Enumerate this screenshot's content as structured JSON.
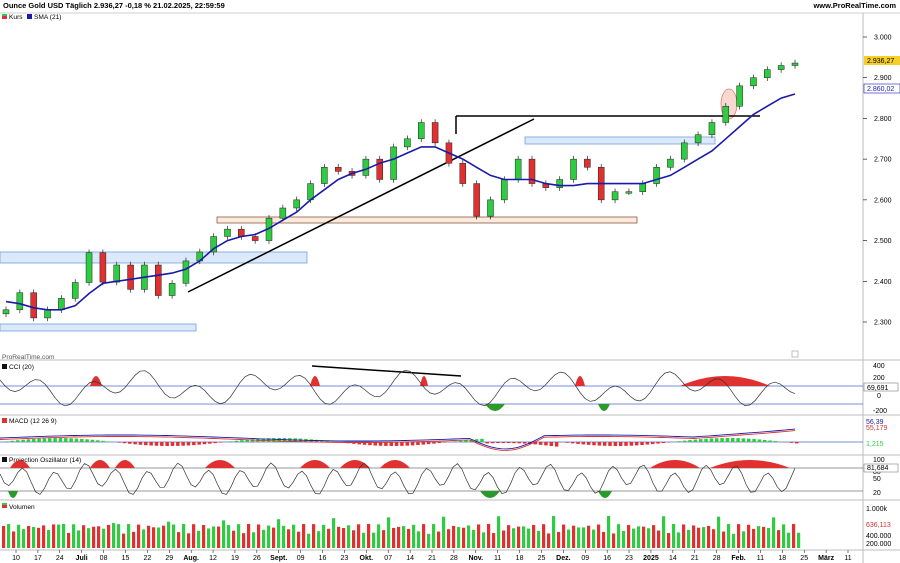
{
  "header": {
    "title": "Ounce Gold USD Täglich 2.936,27 -0,18 % 21.02.2025, 22:59:59",
    "source": "www.ProRealTime.com",
    "watermark": "ProRealTime.com"
  },
  "price_axis": {
    "ticks": [
      "3.000",
      "2.900",
      "2.800",
      "2.700",
      "2.600",
      "2.500",
      "2.400",
      "2.300"
    ]
  },
  "badges": {
    "close": "2.936,27",
    "sma": "2.860,02",
    "cci": "69,691",
    "macd1": "56,39",
    "macd2": "55,179",
    "macd_hist": "1,215",
    "proj": "81,684",
    "vol": "636,113"
  },
  "legends": {
    "price": [
      "Kurs",
      "SMA (21)"
    ],
    "cci": "CCI (20)",
    "macd": "MACD (12 26 9)",
    "proj": "Projection Oszillator (14)",
    "vol": "Volumen"
  },
  "cci_axis": [
    "400",
    "200",
    "0",
    "-200"
  ],
  "proj_axis": [
    "100",
    "80",
    "50",
    "20"
  ],
  "vol_axis": [
    "1.000k",
    "400.000",
    "200.000"
  ],
  "x_axis": [
    {
      "day": "10",
      "bold": false
    },
    {
      "day": "17",
      "bold": false
    },
    {
      "day": "24",
      "bold": false
    },
    {
      "day": "Juli",
      "bold": true
    },
    {
      "day": "08",
      "bold": false
    },
    {
      "day": "15",
      "bold": false
    },
    {
      "day": "22",
      "bold": false
    },
    {
      "day": "29",
      "bold": false
    },
    {
      "day": "Aug.",
      "bold": true
    },
    {
      "day": "12",
      "bold": false
    },
    {
      "day": "19",
      "bold": false
    },
    {
      "day": "26",
      "bold": false
    },
    {
      "day": "Sept.",
      "bold": true
    },
    {
      "day": "09",
      "bold": false
    },
    {
      "day": "16",
      "bold": false
    },
    {
      "day": "23",
      "bold": false
    },
    {
      "day": "Okt.",
      "bold": true
    },
    {
      "day": "07",
      "bold": false
    },
    {
      "day": "14",
      "bold": false
    },
    {
      "day": "21",
      "bold": false
    },
    {
      "day": "28",
      "bold": false
    },
    {
      "day": "Nov.",
      "bold": true
    },
    {
      "day": "11",
      "bold": false
    },
    {
      "day": "18",
      "bold": false
    },
    {
      "day": "25",
      "bold": false
    },
    {
      "day": "Dez.",
      "bold": true
    },
    {
      "day": "09",
      "bold": false
    },
    {
      "day": "16",
      "bold": false
    },
    {
      "day": "23",
      "bold": false
    },
    {
      "day": "2025",
      "bold": true
    },
    {
      "day": "14",
      "bold": false
    },
    {
      "day": "21",
      "bold": false
    },
    {
      "day": "28",
      "bold": false
    },
    {
      "day": "Feb.",
      "bold": true
    },
    {
      "day": "11",
      "bold": false
    },
    {
      "day": "18",
      "bold": false
    },
    {
      "day": "25",
      "bold": false
    },
    {
      "day": "März",
      "bold": true
    },
    {
      "day": "11",
      "bold": false
    }
  ],
  "chart_data": {
    "type": "line",
    "title": "Ounce Gold USD Täglich",
    "series": [
      {
        "name": "Kurs",
        "color": "#2ecc40",
        "values": [
          2330,
          2372,
          2310,
          2330,
          2358,
          2397,
          2470,
          2398,
          2440,
          2380,
          2440,
          2365,
          2395,
          2450,
          2472,
          2510,
          2528,
          2510,
          2500,
          2555,
          2580,
          2600,
          2640,
          2680,
          2670,
          2660,
          2700,
          2650,
          2730,
          2750,
          2790,
          2740,
          2690,
          2640,
          2560,
          2600,
          2650,
          2700,
          2640,
          2630,
          2650,
          2700,
          2680,
          2600,
          2620,
          2620,
          2640,
          2680,
          2700,
          2740,
          2760,
          2790,
          2830,
          2880,
          2900,
          2920,
          2930,
          2936
        ]
      },
      {
        "name": "SMA (21)",
        "color": "#1a1aaa",
        "values": [
          2350,
          2345,
          2335,
          2330,
          2330,
          2340,
          2370,
          2395,
          2400,
          2405,
          2410,
          2415,
          2420,
          2430,
          2450,
          2480,
          2500,
          2510,
          2515,
          2530,
          2550,
          2570,
          2600,
          2625,
          2650,
          2665,
          2675,
          2690,
          2700,
          2715,
          2730,
          2730,
          2715,
          2700,
          2680,
          2660,
          2650,
          2650,
          2650,
          2640,
          2635,
          2635,
          2640,
          2640,
          2640,
          2640,
          2640,
          2650,
          2660,
          2680,
          2700,
          2720,
          2750,
          2780,
          2810,
          2830,
          2850,
          2860
        ]
      }
    ],
    "indicators": {
      "cci_last": 69.691,
      "macd_last": 56.39,
      "signal_last": 55.179,
      "projection_last": 81.684,
      "volume_last": 636113
    },
    "ylim": [
      2260,
      3030
    ]
  }
}
